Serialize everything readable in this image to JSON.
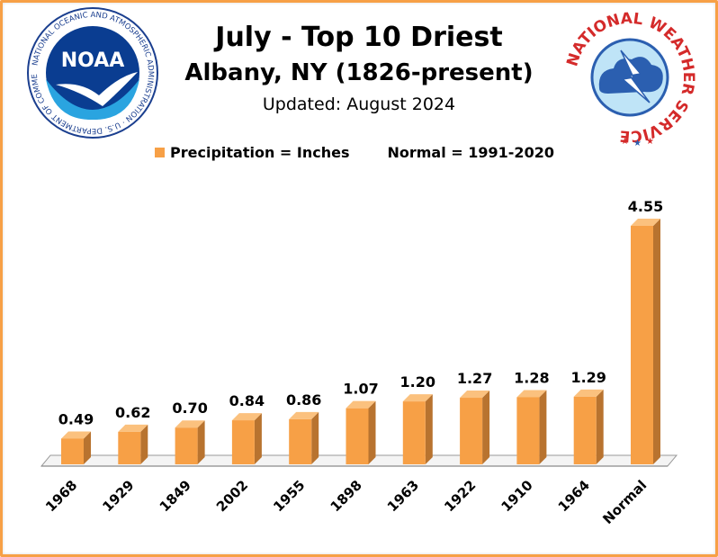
{
  "header": {
    "title": "July - Top 10 Driest",
    "subtitle": "Albany, NY (1826-present)",
    "updated": "Updated: August 2024"
  },
  "legend": {
    "series": "Precipitation = Inches",
    "normal_note": "Normal = 1991-2020"
  },
  "logos": {
    "left_ring_text": "NATIONAL OCEANIC AND ATMOSPHERIC ADMINISTRATION · U.S. DEPARTMENT OF COMMERCE",
    "left_center": "NOAA",
    "right_ring_text": "NATIONAL WEATHER SERVICE"
  },
  "colors": {
    "bar": "#f7a046",
    "bar_side": "#b8732f",
    "bar_top": "#fbc17e",
    "frame": "#f7a046"
  },
  "chart_data": {
    "type": "bar",
    "categories": [
      "1968",
      "1929",
      "1849",
      "2002",
      "1955",
      "1898",
      "1963",
      "1922",
      "1910",
      "1964",
      "Normal"
    ],
    "values": [
      0.49,
      0.62,
      0.7,
      0.84,
      0.86,
      1.07,
      1.2,
      1.27,
      1.28,
      1.29,
      4.55
    ],
    "value_labels": [
      "0.49",
      "0.62",
      "0.70",
      "0.84",
      "0.86",
      "1.07",
      "1.20",
      "1.27",
      "1.28",
      "1.29",
      "4.55"
    ],
    "ylim": [
      0,
      4.55
    ],
    "grid": false,
    "legend_position": "top"
  }
}
